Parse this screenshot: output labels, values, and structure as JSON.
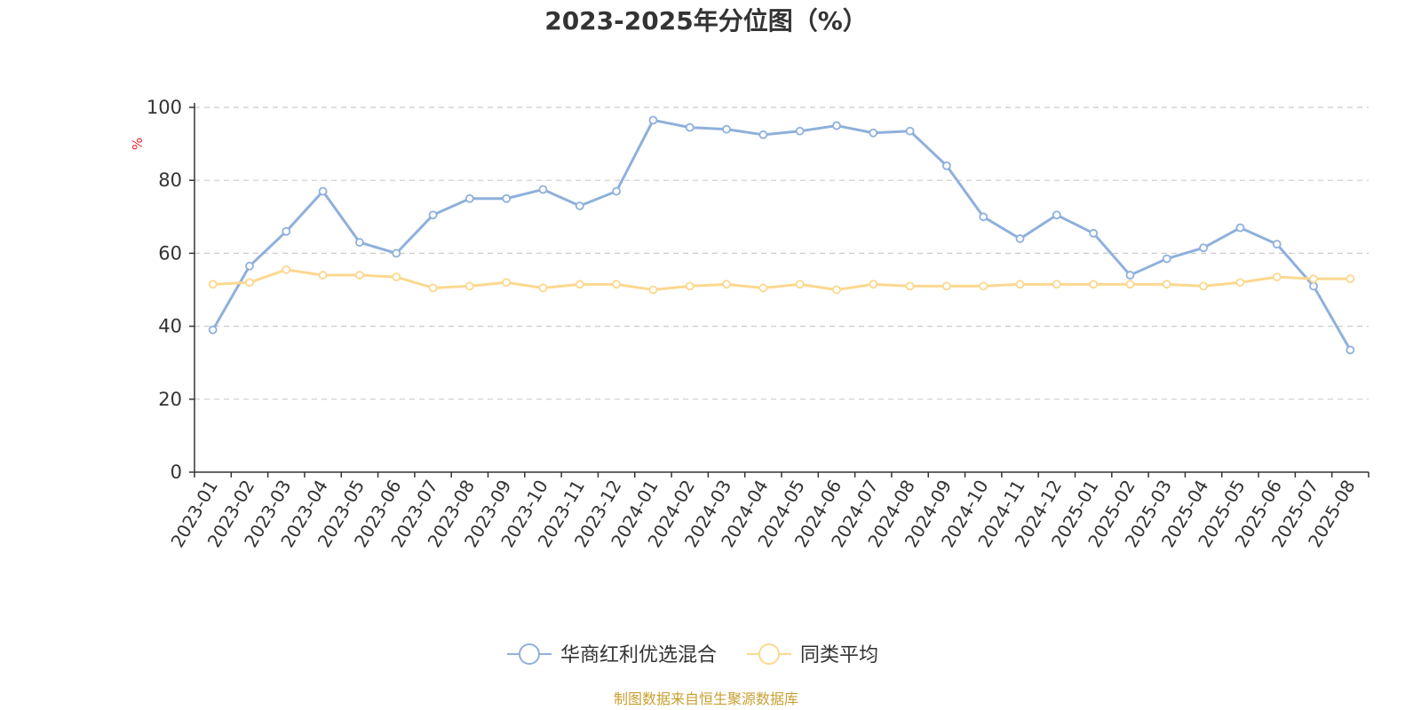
{
  "chart_data": {
    "type": "line",
    "title": "2023-2025年分位图（%）",
    "ylabel": "%",
    "ylim": [
      0,
      100
    ],
    "yticks": [
      0,
      20,
      40,
      60,
      80,
      100
    ],
    "grid": true,
    "legend_position": "bottom",
    "x": [
      "2023-01",
      "2023-02",
      "2023-03",
      "2023-04",
      "2023-05",
      "2023-06",
      "2023-07",
      "2023-08",
      "2023-09",
      "2023-10",
      "2023-11",
      "2023-12",
      "2024-01",
      "2024-02",
      "2024-03",
      "2024-04",
      "2024-05",
      "2024-06",
      "2024-07",
      "2024-08",
      "2024-09",
      "2024-10",
      "2024-11",
      "2024-12",
      "2025-01",
      "2025-02",
      "2025-03",
      "2025-04",
      "2025-05",
      "2025-06",
      "2025-07",
      "2025-08"
    ],
    "series": [
      {
        "name": "华商红利优选混合",
        "color": "#8eb0dc",
        "values": [
          39,
          56.5,
          66,
          77,
          63,
          60,
          70.5,
          75,
          75,
          77.5,
          73,
          77,
          96.5,
          94.5,
          94,
          92.5,
          93.5,
          95,
          93,
          93.5,
          84,
          70,
          64,
          70.5,
          65.5,
          54,
          58.5,
          61.5,
          67,
          62.5,
          51,
          33.5
        ]
      },
      {
        "name": "同类平均",
        "color": "#fcd88f",
        "values": [
          51.5,
          52,
          55.5,
          54,
          54,
          53.5,
          50.5,
          51,
          52,
          50.5,
          51.5,
          51.5,
          50,
          51,
          51.5,
          50.5,
          51.5,
          50,
          51.5,
          51,
          51,
          51,
          51.5,
          51.5,
          51.5,
          51.5,
          51.5,
          51,
          52,
          53.5,
          53,
          53
        ]
      }
    ]
  },
  "source_text": "制图数据来自恒生聚源数据库",
  "colors": {
    "axis": "#333333",
    "grid": "#cccccc",
    "unit_label": "#e8262d",
    "source_text": "#c8a032"
  }
}
